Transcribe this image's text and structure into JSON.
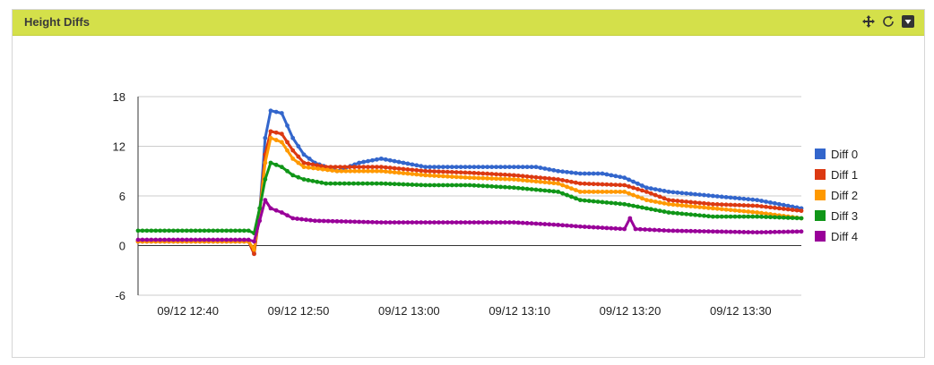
{
  "widget": {
    "title": "Height Diffs",
    "icons": [
      "move-icon",
      "refresh-icon",
      "collapse-icon"
    ]
  },
  "colors": {
    "header_bg": "#d4e04a",
    "Diff 0": "#3366cc",
    "Diff 1": "#dc3912",
    "Diff 2": "#ff9900",
    "Diff 3": "#109618",
    "Diff 4": "#990099"
  },
  "chart_data": {
    "type": "line",
    "title": "",
    "xlabel": "",
    "ylabel": "",
    "x_start": "09/12 12:38",
    "x_end": "09/12 13:38",
    "xlim": [
      "09/12 12:38",
      "09/12 13:38"
    ],
    "ylim": [
      -6,
      18
    ],
    "yticks": [
      -6,
      0,
      6,
      12,
      18
    ],
    "xticks": [
      "09/12 12:40",
      "09/12 12:50",
      "09/12 13:00",
      "09/12 13:10",
      "09/12 13:20",
      "09/12 13:30"
    ],
    "grid": true,
    "legend": "right",
    "markers": true,
    "series": [
      {
        "name": "Diff 0",
        "points": [
          [
            "09/12 12:38",
            0.5
          ],
          [
            "09/12 12:48",
            0.5
          ],
          [
            "09/12 12:48:30",
            -1
          ],
          [
            "09/12 12:49",
            4
          ],
          [
            "09/12 12:49:30",
            13
          ],
          [
            "09/12 12:50",
            16.3
          ],
          [
            "09/12 12:51",
            16
          ],
          [
            "09/12 12:52",
            13
          ],
          [
            "09/12 12:53",
            11
          ],
          [
            "09/12 12:54",
            10
          ],
          [
            "09/12 12:56",
            9
          ],
          [
            "09/12 12:58",
            10
          ],
          [
            "09/12 13:00",
            10.5
          ],
          [
            "09/12 13:02",
            10
          ],
          [
            "09/12 13:04",
            9.5
          ],
          [
            "09/12 13:08",
            9.5
          ],
          [
            "09/12 13:12",
            9.5
          ],
          [
            "09/12 13:14",
            9.5
          ],
          [
            "09/12 13:16",
            9
          ],
          [
            "09/12 13:18",
            8.7
          ],
          [
            "09/12 13:20",
            8.7
          ],
          [
            "09/12 13:22",
            8.2
          ],
          [
            "09/12 13:24",
            7
          ],
          [
            "09/12 13:26",
            6.5
          ],
          [
            "09/12 13:30",
            6
          ],
          [
            "09/12 13:34",
            5.5
          ],
          [
            "09/12 13:38",
            4.5
          ]
        ]
      },
      {
        "name": "Diff 1",
        "points": [
          [
            "09/12 12:38",
            0.5
          ],
          [
            "09/12 12:48",
            0.5
          ],
          [
            "09/12 12:48:30",
            -1
          ],
          [
            "09/12 12:49",
            4
          ],
          [
            "09/12 12:49:30",
            11
          ],
          [
            "09/12 12:50",
            13.8
          ],
          [
            "09/12 12:51",
            13.5
          ],
          [
            "09/12 12:52",
            11.5
          ],
          [
            "09/12 12:53",
            10
          ],
          [
            "09/12 12:55",
            9.5
          ],
          [
            "09/12 12:58",
            9.5
          ],
          [
            "09/12 13:00",
            9.5
          ],
          [
            "09/12 13:04",
            9
          ],
          [
            "09/12 13:08",
            8.8
          ],
          [
            "09/12 13:12",
            8.5
          ],
          [
            "09/12 13:16",
            8
          ],
          [
            "09/12 13:18",
            7.5
          ],
          [
            "09/12 13:22",
            7.3
          ],
          [
            "09/12 13:24",
            6.5
          ],
          [
            "09/12 13:26",
            5.5
          ],
          [
            "09/12 13:30",
            5
          ],
          [
            "09/12 13:34",
            4.8
          ],
          [
            "09/12 13:38",
            4.2
          ]
        ]
      },
      {
        "name": "Diff 2",
        "points": [
          [
            "09/12 12:38",
            0.5
          ],
          [
            "09/12 12:48",
            0.5
          ],
          [
            "09/12 12:48:30",
            -0.5
          ],
          [
            "09/12 12:49",
            4
          ],
          [
            "09/12 12:49:30",
            10
          ],
          [
            "09/12 12:50",
            13
          ],
          [
            "09/12 12:51",
            12.5
          ],
          [
            "09/12 12:52",
            10.5
          ],
          [
            "09/12 12:53",
            9.5
          ],
          [
            "09/12 12:56",
            9
          ],
          [
            "09/12 13:00",
            9
          ],
          [
            "09/12 13:04",
            8.5
          ],
          [
            "09/12 13:08",
            8.2
          ],
          [
            "09/12 13:12",
            8
          ],
          [
            "09/12 13:16",
            7.5
          ],
          [
            "09/12 13:18",
            6.5
          ],
          [
            "09/12 13:22",
            6.5
          ],
          [
            "09/12 13:24",
            5.5
          ],
          [
            "09/12 13:26",
            5
          ],
          [
            "09/12 13:30",
            4.5
          ],
          [
            "09/12 13:34",
            4
          ],
          [
            "09/12 13:38",
            3.3
          ]
        ]
      },
      {
        "name": "Diff 3",
        "points": [
          [
            "09/12 12:38",
            1.8
          ],
          [
            "09/12 12:48",
            1.8
          ],
          [
            "09/12 12:48:30",
            1.5
          ],
          [
            "09/12 12:49",
            4.5
          ],
          [
            "09/12 12:49:30",
            8
          ],
          [
            "09/12 12:50",
            10
          ],
          [
            "09/12 12:51",
            9.5
          ],
          [
            "09/12 12:52",
            8.5
          ],
          [
            "09/12 12:53",
            8
          ],
          [
            "09/12 12:55",
            7.5
          ],
          [
            "09/12 13:00",
            7.5
          ],
          [
            "09/12 13:04",
            7.3
          ],
          [
            "09/12 13:08",
            7.3
          ],
          [
            "09/12 13:12",
            7
          ],
          [
            "09/12 13:16",
            6.5
          ],
          [
            "09/12 13:18",
            5.5
          ],
          [
            "09/12 13:22",
            5
          ],
          [
            "09/12 13:24",
            4.5
          ],
          [
            "09/12 13:26",
            4
          ],
          [
            "09/12 13:30",
            3.5
          ],
          [
            "09/12 13:34",
            3.5
          ],
          [
            "09/12 13:38",
            3.3
          ]
        ]
      },
      {
        "name": "Diff 4",
        "points": [
          [
            "09/12 12:38",
            0.7
          ],
          [
            "09/12 12:48",
            0.7
          ],
          [
            "09/12 12:48:30",
            0.5
          ],
          [
            "09/12 12:49",
            3
          ],
          [
            "09/12 12:49:30",
            5.5
          ],
          [
            "09/12 12:50",
            4.5
          ],
          [
            "09/12 12:51",
            4
          ],
          [
            "09/12 12:52",
            3.3
          ],
          [
            "09/12 12:54",
            3
          ],
          [
            "09/12 13:00",
            2.8
          ],
          [
            "09/12 13:08",
            2.8
          ],
          [
            "09/12 13:12",
            2.8
          ],
          [
            "09/12 13:16",
            2.5
          ],
          [
            "09/12 13:18",
            2.3
          ],
          [
            "09/12 13:22",
            2
          ],
          [
            "09/12 13:22:30",
            3.3
          ],
          [
            "09/12 13:23",
            2
          ],
          [
            "09/12 13:26",
            1.8
          ],
          [
            "09/12 13:30",
            1.7
          ],
          [
            "09/12 13:34",
            1.6
          ],
          [
            "09/12 13:38",
            1.7
          ]
        ]
      }
    ]
  }
}
